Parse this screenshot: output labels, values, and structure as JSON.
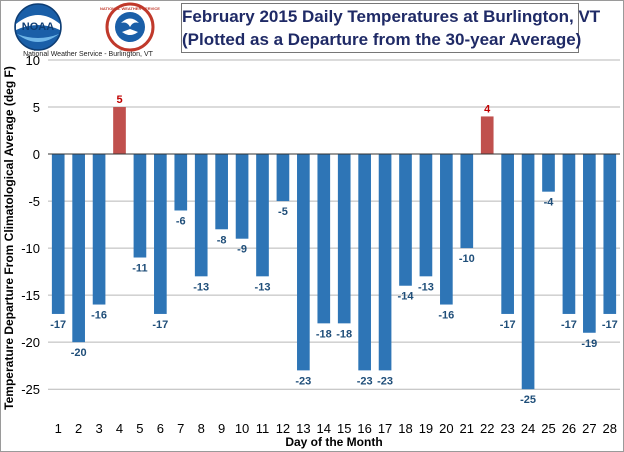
{
  "header": {
    "noaa_logo_text": "NOAA",
    "nws_seal_text": "NATIONAL WEATHER SERVICE",
    "caption": "National Weather Service - Burlington, VT"
  },
  "colors": {
    "negative_bar": "#2e75b6",
    "positive_bar": "#c0504d",
    "negative_label": "#1f4e79",
    "positive_label": "#c00000",
    "title_text": "#1f2a66",
    "grid": "#b7b7b7"
  },
  "chart_data": {
    "type": "bar",
    "title": "February 2015 Daily Temperatures at Burlington, VT",
    "subtitle": "(Plotted as a Departure from the 30-year Average)",
    "xlabel": "Day of the Month",
    "ylabel": "Temperature Departure From Climatological  Average (deg F)",
    "categories": [
      "1",
      "2",
      "3",
      "4",
      "5",
      "6",
      "7",
      "8",
      "9",
      "10",
      "11",
      "12",
      "13",
      "14",
      "15",
      "16",
      "17",
      "18",
      "19",
      "20",
      "21",
      "22",
      "23",
      "24",
      "25",
      "26",
      "27",
      "28"
    ],
    "values": [
      -17,
      -20,
      -16,
      5,
      -11,
      -17,
      -6,
      -13,
      -8,
      -9,
      -13,
      -5,
      -23,
      -18,
      -18,
      -23,
      -23,
      -14,
      -13,
      -16,
      -10,
      4,
      -17,
      -25,
      -4,
      -17,
      -19,
      -17
    ],
    "ylim": [
      -27,
      10
    ],
    "yticks": [
      10,
      5,
      0,
      -5,
      -10,
      -15,
      -20,
      -25
    ],
    "grid": "horizontal",
    "data_labels": true
  }
}
